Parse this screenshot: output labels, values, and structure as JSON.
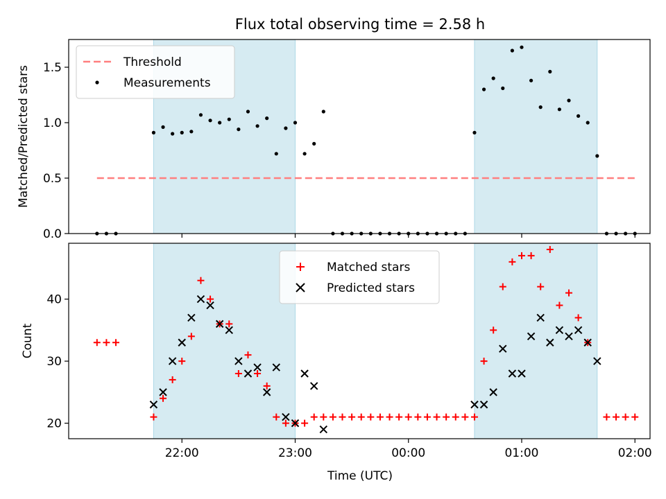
{
  "title": "Flux total observing time = 2.58 h",
  "colors": {
    "shade": "#add8e6",
    "threshold": "#ff7f7f",
    "measurements": "#000000",
    "matched": "#ff0000",
    "predicted": "#000000"
  },
  "chart_data": [
    {
      "type": "scatter",
      "ylabel": "Matched/Predicted stars",
      "ylim": [
        0,
        1.75
      ],
      "yticks": [
        "0.0",
        "0.5",
        "1.0",
        "1.5"
      ],
      "xticks": [
        "22:00",
        "23:00",
        "00:00",
        "01:00",
        "02:00"
      ],
      "legend_position": "top-left",
      "shaded_intervals": [
        [
          "21:45",
          "23:00"
        ],
        [
          "00:35",
          "01:40"
        ]
      ],
      "threshold": {
        "name": "Threshold",
        "value": 0.5,
        "x_range": [
          "21:15",
          "02:00"
        ]
      },
      "series": [
        {
          "name": "Measurements",
          "points": [
            [
              "21:15",
              0.0
            ],
            [
              "21:20",
              0.0
            ],
            [
              "21:25",
              0.0
            ],
            [
              "21:45",
              0.91
            ],
            [
              "21:50",
              0.96
            ],
            [
              "21:55",
              0.9
            ],
            [
              "22:00",
              0.91
            ],
            [
              "22:05",
              0.92
            ],
            [
              "22:10",
              1.07
            ],
            [
              "22:15",
              1.02
            ],
            [
              "22:20",
              1.0
            ],
            [
              "22:25",
              1.03
            ],
            [
              "22:30",
              0.94
            ],
            [
              "22:35",
              1.1
            ],
            [
              "22:40",
              0.97
            ],
            [
              "22:45",
              1.04
            ],
            [
              "22:50",
              0.72
            ],
            [
              "22:55",
              0.95
            ],
            [
              "23:00",
              1.0
            ],
            [
              "23:05",
              0.72
            ],
            [
              "23:10",
              0.81
            ],
            [
              "23:15",
              1.1
            ],
            [
              "23:20",
              0.0
            ],
            [
              "23:25",
              0.0
            ],
            [
              "23:30",
              0.0
            ],
            [
              "23:35",
              0.0
            ],
            [
              "23:40",
              0.0
            ],
            [
              "23:45",
              0.0
            ],
            [
              "23:50",
              0.0
            ],
            [
              "23:55",
              0.0
            ],
            [
              "00:00",
              0.0
            ],
            [
              "00:05",
              0.0
            ],
            [
              "00:10",
              0.0
            ],
            [
              "00:15",
              0.0
            ],
            [
              "00:20",
              0.0
            ],
            [
              "00:25",
              0.0
            ],
            [
              "00:30",
              0.0
            ],
            [
              "00:35",
              0.91
            ],
            [
              "00:40",
              1.3
            ],
            [
              "00:45",
              1.4
            ],
            [
              "00:50",
              1.31
            ],
            [
              "00:55",
              1.65
            ],
            [
              "01:00",
              1.68
            ],
            [
              "01:05",
              1.38
            ],
            [
              "01:10",
              1.14
            ],
            [
              "01:15",
              1.46
            ],
            [
              "01:20",
              1.12
            ],
            [
              "01:25",
              1.2
            ],
            [
              "01:30",
              1.06
            ],
            [
              "01:35",
              1.0
            ],
            [
              "01:40",
              0.7
            ],
            [
              "01:45",
              0.0
            ],
            [
              "01:50",
              0.0
            ],
            [
              "01:55",
              0.0
            ],
            [
              "02:00",
              0.0
            ]
          ]
        }
      ]
    },
    {
      "type": "scatter",
      "xlabel": "Time (UTC)",
      "ylabel": "Count",
      "ylim": [
        17.5,
        49
      ],
      "yticks": [
        "20",
        "30",
        "40"
      ],
      "xticks": [
        "22:00",
        "23:00",
        "00:00",
        "01:00",
        "02:00"
      ],
      "legend_position": "top-center",
      "shaded_intervals": [
        [
          "21:45",
          "23:00"
        ],
        [
          "00:35",
          "01:40"
        ]
      ],
      "series": [
        {
          "name": "Matched stars",
          "marker": "plus",
          "points": [
            [
              "21:15",
              33
            ],
            [
              "21:20",
              33
            ],
            [
              "21:25",
              33
            ],
            [
              "21:45",
              21
            ],
            [
              "21:50",
              24
            ],
            [
              "21:55",
              27
            ],
            [
              "22:00",
              30
            ],
            [
              "22:05",
              34
            ],
            [
              "22:10",
              43
            ],
            [
              "22:15",
              40
            ],
            [
              "22:20",
              36
            ],
            [
              "22:25",
              36
            ],
            [
              "22:30",
              28
            ],
            [
              "22:35",
              31
            ],
            [
              "22:40",
              28
            ],
            [
              "22:45",
              26
            ],
            [
              "22:50",
              21
            ],
            [
              "22:55",
              20
            ],
            [
              "23:00",
              20
            ],
            [
              "23:05",
              20
            ],
            [
              "23:10",
              21
            ],
            [
              "23:15",
              21
            ],
            [
              "23:20",
              21
            ],
            [
              "23:25",
              21
            ],
            [
              "23:30",
              21
            ],
            [
              "23:35",
              21
            ],
            [
              "23:40",
              21
            ],
            [
              "23:45",
              21
            ],
            [
              "23:50",
              21
            ],
            [
              "23:55",
              21
            ],
            [
              "00:00",
              21
            ],
            [
              "00:05",
              21
            ],
            [
              "00:10",
              21
            ],
            [
              "00:15",
              21
            ],
            [
              "00:20",
              21
            ],
            [
              "00:25",
              21
            ],
            [
              "00:30",
              21
            ],
            [
              "00:35",
              21
            ],
            [
              "00:40",
              30
            ],
            [
              "00:45",
              35
            ],
            [
              "00:50",
              42
            ],
            [
              "00:55",
              46
            ],
            [
              "01:00",
              47
            ],
            [
              "01:05",
              47
            ],
            [
              "01:10",
              42
            ],
            [
              "01:15",
              48
            ],
            [
              "01:20",
              39
            ],
            [
              "01:25",
              41
            ],
            [
              "01:30",
              37
            ],
            [
              "01:35",
              33
            ],
            [
              "01:45",
              21
            ],
            [
              "01:50",
              21
            ],
            [
              "01:55",
              21
            ],
            [
              "02:00",
              21
            ]
          ]
        },
        {
          "name": "Predicted stars",
          "marker": "x",
          "points": [
            [
              "21:45",
              23
            ],
            [
              "21:50",
              25
            ],
            [
              "21:55",
              30
            ],
            [
              "22:00",
              33
            ],
            [
              "22:05",
              37
            ],
            [
              "22:10",
              40
            ],
            [
              "22:15",
              39
            ],
            [
              "22:20",
              36
            ],
            [
              "22:25",
              35
            ],
            [
              "22:30",
              30
            ],
            [
              "22:35",
              28
            ],
            [
              "22:40",
              29
            ],
            [
              "22:45",
              25
            ],
            [
              "22:50",
              29
            ],
            [
              "22:55",
              21
            ],
            [
              "23:00",
              20
            ],
            [
              "23:05",
              28
            ],
            [
              "23:10",
              26
            ],
            [
              "23:15",
              19
            ],
            [
              "00:35",
              23
            ],
            [
              "00:40",
              23
            ],
            [
              "00:45",
              25
            ],
            [
              "00:50",
              32
            ],
            [
              "00:55",
              28
            ],
            [
              "01:00",
              28
            ],
            [
              "01:05",
              34
            ],
            [
              "01:10",
              37
            ],
            [
              "01:15",
              33
            ],
            [
              "01:20",
              35
            ],
            [
              "01:25",
              34
            ],
            [
              "01:30",
              35
            ],
            [
              "01:35",
              33
            ],
            [
              "01:40",
              30
            ]
          ]
        }
      ]
    }
  ]
}
